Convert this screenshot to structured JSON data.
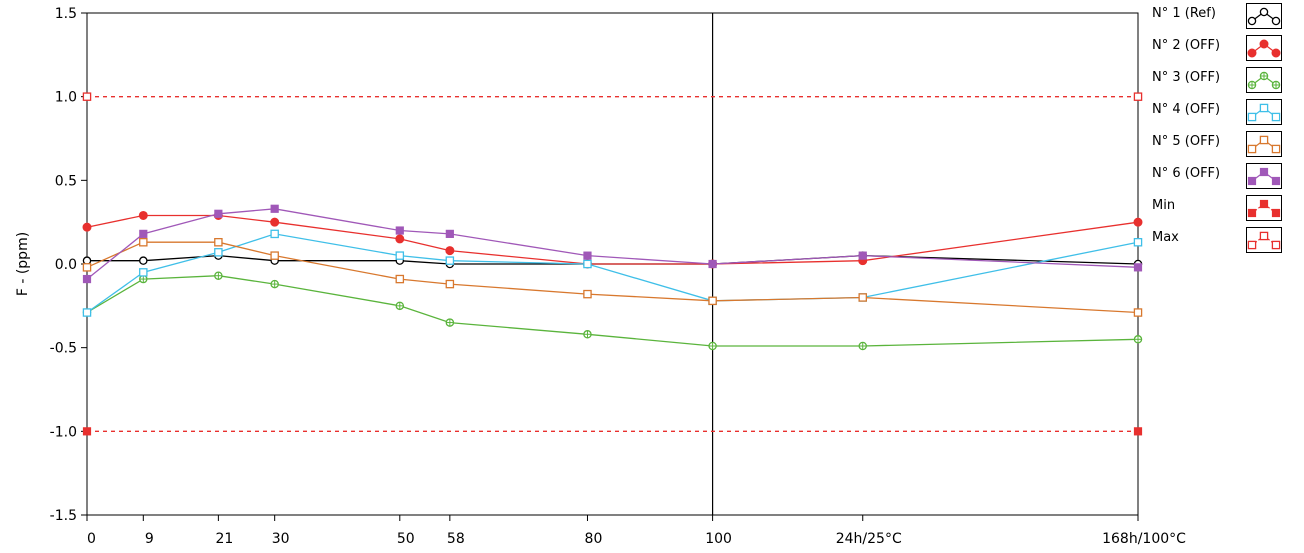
{
  "chart_data": {
    "type": "line",
    "ylabel": "F - (ppm)",
    "xlabel": "",
    "ylim": [
      -1.5,
      1.5
    ],
    "y_ticks": [
      "1.5",
      "1.0",
      "0.5",
      "0.0",
      "-0.5",
      "-1.0",
      "-1.5"
    ],
    "x": [
      0,
      9,
      21,
      30,
      50,
      58,
      80,
      100,
      124,
      168
    ],
    "x_tick_labels": [
      "0",
      "9",
      "21",
      "30",
      "50",
      "58",
      "80",
      "100",
      "24h/25°C",
      "168h/100°C"
    ],
    "cursor_x": 100,
    "grid": false,
    "legend_position": "right",
    "series": [
      {
        "name": "N° 1 (Ref)",
        "color": "#000000",
        "marker": "open-circle",
        "x": [
          0,
          9,
          21,
          30,
          50,
          58,
          80,
          100,
          124,
          168
        ],
        "values": [
          0.02,
          0.02,
          0.05,
          0.02,
          0.02,
          0.0,
          0.0,
          0.0,
          0.05,
          0.0
        ]
      },
      {
        "name": "N° 2 (OFF)",
        "color": "#e8302e",
        "marker": "filled-circle",
        "x": [
          0,
          9,
          21,
          30,
          50,
          58,
          80,
          100,
          124,
          168
        ],
        "values": [
          0.22,
          0.29,
          0.29,
          0.25,
          0.15,
          0.08,
          0.0,
          0.0,
          0.02,
          0.25
        ]
      },
      {
        "name": "N° 3 (OFF)",
        "color": "#5ab43c",
        "marker": "crossed-circle",
        "x": [
          0,
          9,
          21,
          30,
          50,
          58,
          80,
          100,
          124,
          168
        ],
        "values": [
          -0.29,
          -0.09,
          -0.07,
          -0.12,
          -0.25,
          -0.35,
          -0.42,
          -0.49,
          -0.49,
          -0.45
        ]
      },
      {
        "name": "N° 4 (OFF)",
        "color": "#3fbfe8",
        "marker": "open-square",
        "x": [
          0,
          9,
          21,
          30,
          50,
          58,
          80,
          100,
          124,
          168
        ],
        "values": [
          -0.29,
          -0.05,
          0.07,
          0.18,
          0.05,
          0.02,
          0.0,
          -0.22,
          -0.2,
          0.13
        ]
      },
      {
        "name": "N° 5 (OFF)",
        "color": "#d8782e",
        "marker": "open-square",
        "x": [
          0,
          9,
          21,
          30,
          50,
          58,
          80,
          100,
          124,
          168
        ],
        "values": [
          -0.02,
          0.13,
          0.13,
          0.05,
          -0.09,
          -0.12,
          -0.18,
          -0.22,
          -0.2,
          -0.29
        ]
      },
      {
        "name": "N° 6 (OFF)",
        "color": "#a058b8",
        "marker": "filled-square",
        "x": [
          0,
          9,
          21,
          30,
          50,
          58,
          80,
          100,
          124,
          168
        ],
        "values": [
          -0.09,
          0.18,
          0.3,
          0.33,
          0.2,
          0.18,
          0.05,
          0.0,
          0.05,
          -0.02
        ]
      },
      {
        "name": "Min",
        "color": "#e8302e",
        "marker": "filled-square",
        "dashed": true,
        "x": [
          0,
          168
        ],
        "values": [
          -1.0,
          -1.0
        ]
      },
      {
        "name": "Max",
        "color": "#e8302e",
        "marker": "open-square",
        "dashed": true,
        "x": [
          0,
          168
        ],
        "values": [
          1.0,
          1.0
        ]
      }
    ]
  }
}
